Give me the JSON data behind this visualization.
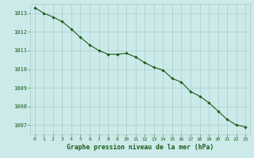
{
  "x": [
    0,
    1,
    2,
    3,
    4,
    5,
    6,
    7,
    8,
    9,
    10,
    11,
    12,
    13,
    14,
    15,
    16,
    17,
    18,
    19,
    20,
    21,
    22,
    23
  ],
  "y": [
    1013.3,
    1013.0,
    1012.8,
    1012.55,
    1012.15,
    1011.7,
    1011.3,
    1011.0,
    1010.8,
    1010.8,
    1010.85,
    1010.65,
    1010.35,
    1010.1,
    1009.95,
    1009.5,
    1009.3,
    1008.8,
    1008.55,
    1008.2,
    1007.75,
    1007.3,
    1007.0,
    1006.9
  ],
  "line_color": "#1a5c1a",
  "marker": "D",
  "marker_size": 1.8,
  "bg_color": "#cceaea",
  "grid_color": "#aacccc",
  "xlabel": "Graphe pression niveau de la mer (hPa)",
  "xlabel_color": "#1a5c1a",
  "tick_color": "#1a5c1a",
  "ylim": [
    1006.5,
    1013.5
  ],
  "xlim": [
    -0.5,
    23.5
  ],
  "yticks": [
    1007,
    1008,
    1009,
    1010,
    1011,
    1012,
    1013
  ],
  "xticks": [
    0,
    1,
    2,
    3,
    4,
    5,
    6,
    7,
    8,
    9,
    10,
    11,
    12,
    13,
    14,
    15,
    16,
    17,
    18,
    19,
    20,
    21,
    22,
    23
  ]
}
